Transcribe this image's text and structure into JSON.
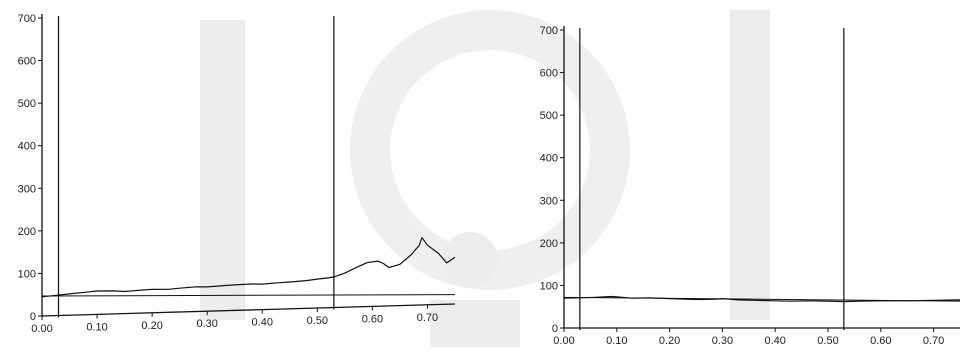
{
  "chart_data": [
    {
      "type": "line",
      "xlim": [
        0.0,
        0.75
      ],
      "ylim": [
        0,
        700
      ],
      "x_ticks": [
        "0.00",
        "0.10",
        "0.20",
        "0.30",
        "0.40",
        "0.50",
        "0.60",
        "0.70"
      ],
      "y_ticks": [
        "0",
        "100",
        "200",
        "300",
        "400",
        "500",
        "600",
        "700"
      ],
      "markers": [
        0.03,
        0.53
      ],
      "baseline": [
        {
          "x": 0.0,
          "y": 47
        },
        {
          "x": 0.75,
          "y": 22
        }
      ],
      "series": [
        {
          "points": [
            {
              "x": 0.0,
              "y": 45
            },
            {
              "x": 0.02,
              "y": 47
            },
            {
              "x": 0.05,
              "y": 50
            },
            {
              "x": 0.08,
              "y": 53
            },
            {
              "x": 0.1,
              "y": 55
            },
            {
              "x": 0.13,
              "y": 54
            },
            {
              "x": 0.15,
              "y": 52
            },
            {
              "x": 0.18,
              "y": 54
            },
            {
              "x": 0.2,
              "y": 55
            },
            {
              "x": 0.23,
              "y": 54
            },
            {
              "x": 0.25,
              "y": 56
            },
            {
              "x": 0.28,
              "y": 58
            },
            {
              "x": 0.3,
              "y": 57
            },
            {
              "x": 0.33,
              "y": 59
            },
            {
              "x": 0.35,
              "y": 60
            },
            {
              "x": 0.38,
              "y": 61
            },
            {
              "x": 0.4,
              "y": 60
            },
            {
              "x": 0.43,
              "y": 62
            },
            {
              "x": 0.45,
              "y": 63
            },
            {
              "x": 0.48,
              "y": 65
            },
            {
              "x": 0.5,
              "y": 68
            },
            {
              "x": 0.52,
              "y": 70
            },
            {
              "x": 0.53,
              "y": 72
            },
            {
              "x": 0.55,
              "y": 80
            },
            {
              "x": 0.57,
              "y": 92
            },
            {
              "x": 0.59,
              "y": 103
            },
            {
              "x": 0.61,
              "y": 106
            },
            {
              "x": 0.62,
              "y": 100
            },
            {
              "x": 0.63,
              "y": 90
            },
            {
              "x": 0.65,
              "y": 97
            },
            {
              "x": 0.67,
              "y": 118
            },
            {
              "x": 0.685,
              "y": 140
            },
            {
              "x": 0.69,
              "y": 158
            },
            {
              "x": 0.7,
              "y": 140
            },
            {
              "x": 0.72,
              "y": 120
            },
            {
              "x": 0.735,
              "y": 97
            },
            {
              "x": 0.75,
              "y": 110
            }
          ]
        }
      ]
    },
    {
      "type": "line",
      "xlim": [
        0.0,
        0.75
      ],
      "ylim": [
        0,
        700
      ],
      "x_ticks": [
        "0.00",
        "0.10",
        "0.20",
        "0.30",
        "0.40",
        "0.50",
        "0.60",
        "0.70"
      ],
      "y_ticks": [
        "0",
        "100",
        "200",
        "300",
        "400",
        "500",
        "600",
        "700"
      ],
      "markers": [
        0.03,
        0.53
      ],
      "baseline": [
        {
          "x": 0.0,
          "y": 72
        },
        {
          "x": 0.75,
          "y": 63
        }
      ],
      "series": [
        {
          "points": [
            {
              "x": 0.0,
              "y": 70
            },
            {
              "x": 0.03,
              "y": 71
            },
            {
              "x": 0.06,
              "y": 72
            },
            {
              "x": 0.09,
              "y": 74
            },
            {
              "x": 0.1,
              "y": 73
            },
            {
              "x": 0.13,
              "y": 70
            },
            {
              "x": 0.16,
              "y": 71
            },
            {
              "x": 0.2,
              "y": 69
            },
            {
              "x": 0.23,
              "y": 68
            },
            {
              "x": 0.26,
              "y": 67
            },
            {
              "x": 0.29,
              "y": 68
            },
            {
              "x": 0.3,
              "y": 69
            },
            {
              "x": 0.33,
              "y": 66
            },
            {
              "x": 0.36,
              "y": 65
            },
            {
              "x": 0.4,
              "y": 64
            },
            {
              "x": 0.43,
              "y": 63
            },
            {
              "x": 0.46,
              "y": 64
            },
            {
              "x": 0.5,
              "y": 63
            },
            {
              "x": 0.53,
              "y": 62
            },
            {
              "x": 0.56,
              "y": 63
            },
            {
              "x": 0.6,
              "y": 64
            },
            {
              "x": 0.65,
              "y": 64
            },
            {
              "x": 0.7,
              "y": 65
            },
            {
              "x": 0.75,
              "y": 66
            }
          ]
        }
      ]
    }
  ]
}
